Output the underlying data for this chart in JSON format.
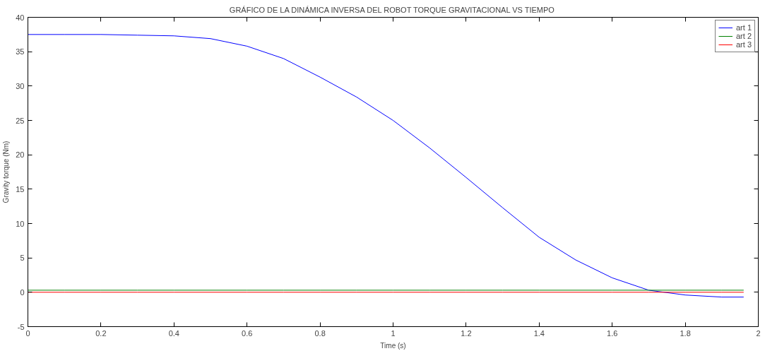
{
  "chart_data": {
    "type": "line",
    "title": "GRÁFICO DE LA DINÁMICA INVERSA DEL ROBOT TORQUE GRAVITACIONAL VS TIEMPO",
    "xlabel": "Time (s)",
    "ylabel": "Gravity torque (Nm)",
    "x": [
      0,
      0.1,
      0.2,
      0.3,
      0.4,
      0.5,
      0.6,
      0.7,
      0.8,
      0.9,
      1.0,
      1.1,
      1.2,
      1.3,
      1.4,
      1.5,
      1.6,
      1.7,
      1.8,
      1.9,
      1.96
    ],
    "series": [
      {
        "name": "art 1",
        "color": "#0000ff",
        "values": [
          37.5,
          37.5,
          37.5,
          37.4,
          37.3,
          36.9,
          35.8,
          34.0,
          31.3,
          28.4,
          25.0,
          21.0,
          16.7,
          12.3,
          8.0,
          4.7,
          2.1,
          0.3,
          -0.4,
          -0.7,
          -0.7
        ]
      },
      {
        "name": "art 2",
        "color": "#008000",
        "values": [
          0.3,
          0.3,
          0.3,
          0.3,
          0.3,
          0.3,
          0.3,
          0.3,
          0.3,
          0.3,
          0.3,
          0.3,
          0.3,
          0.3,
          0.3,
          0.3,
          0.3,
          0.3,
          0.3,
          0.3,
          0.3
        ]
      },
      {
        "name": "art 3",
        "color": "#ff0000",
        "values": [
          0,
          0,
          0,
          0,
          0,
          0,
          0,
          0,
          0,
          0,
          0,
          0,
          0,
          0,
          0,
          0,
          0,
          0,
          0,
          0,
          0
        ]
      }
    ],
    "xlim": [
      0,
      2
    ],
    "ylim": [
      -5,
      40
    ],
    "xticks": [
      0,
      0.2,
      0.4,
      0.6,
      0.8,
      1,
      1.2,
      1.4,
      1.6,
      1.8,
      2
    ],
    "yticks": [
      -5,
      0,
      5,
      10,
      15,
      20,
      25,
      30,
      35,
      40
    ],
    "grid": false,
    "legend": "top right",
    "line_style": "solid",
    "marker": "none"
  }
}
